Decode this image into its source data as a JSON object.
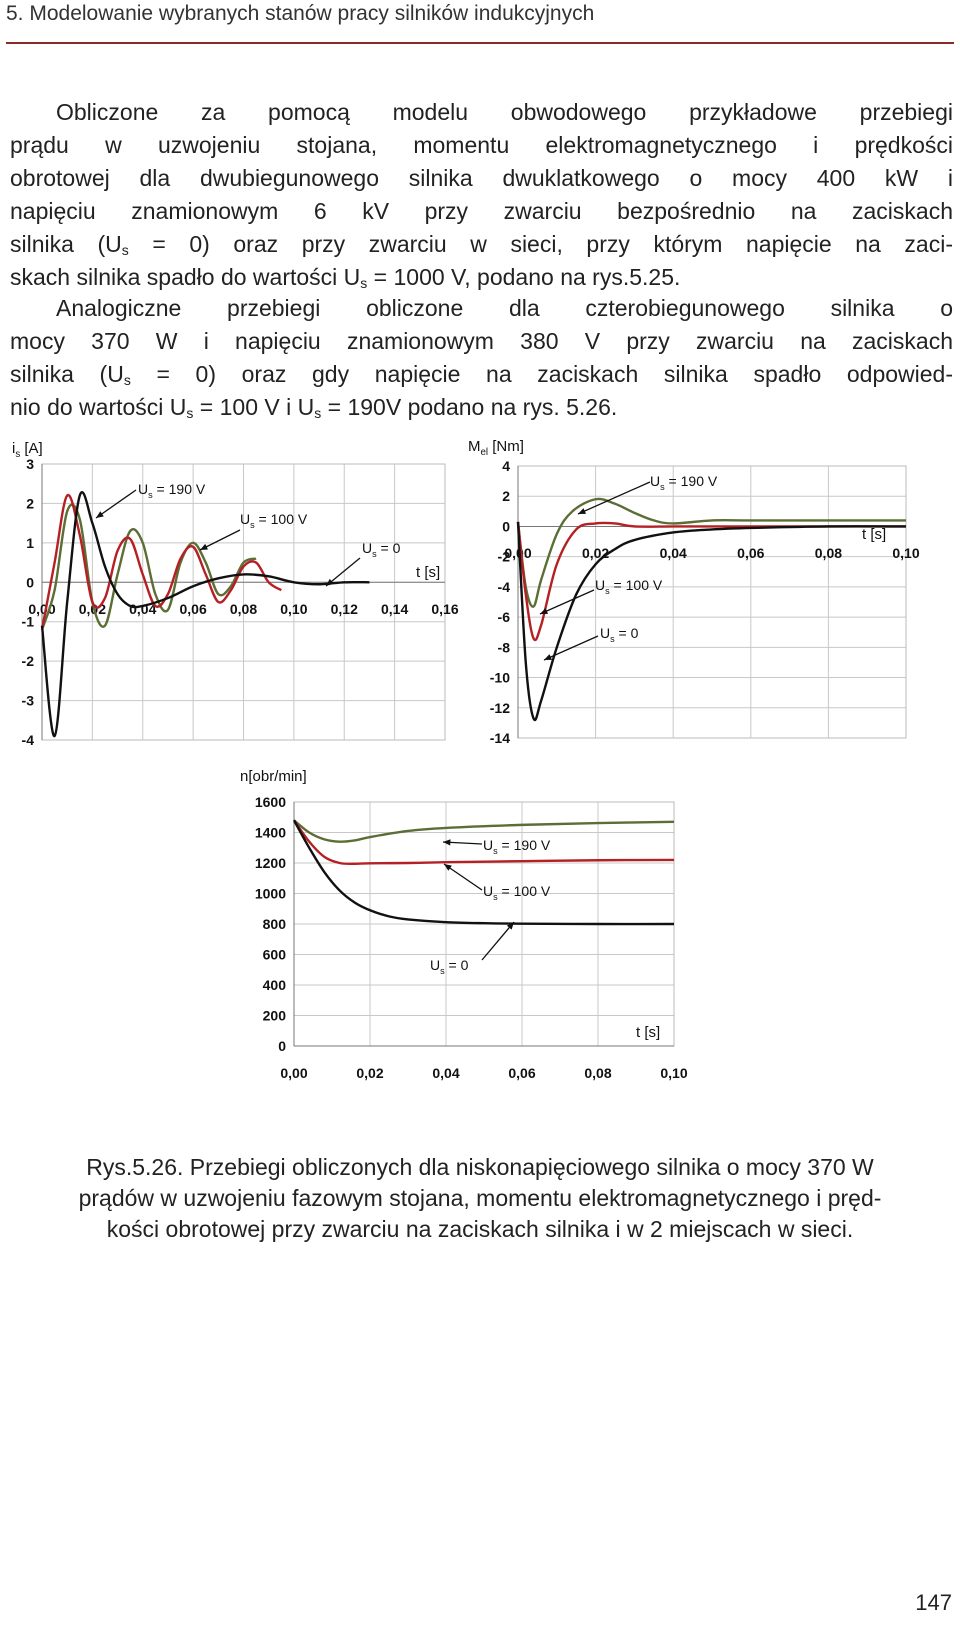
{
  "header": {
    "chapter_title": "5. Modelowanie wybranych stanów pracy silników indukcyjnych"
  },
  "paragraph1": {
    "lines": [
      [
        "Obliczone za pomocą modelu obwodowego przykładowe przebiegi"
      ],
      [
        "prądu w uzwojeniu stojana, momentu elektromagnetycznego i prędkości"
      ],
      [
        "obrotowej dla dwubiegunowego silnika dwuklatkowego o mocy 400 kW i"
      ],
      [
        "napięciu znamionowym 6 kV przy zwarciu bezpośrednio na zaciskach"
      ],
      [
        "silnika (U",
        "s",
        " = 0) oraz przy zwarciu w sieci, przy którym napięcie na zaci-"
      ],
      [
        "skach silnika spadło do wartości U",
        "s",
        " = 1000 V, podano na rys.5.25."
      ]
    ]
  },
  "paragraph2": {
    "lines": [
      [
        "Analogiczne przebiegi obliczone dla czterobiegunowego silnika o"
      ],
      [
        "mocy 370 W i napięciu znamionowym 380 V przy zwarciu na zaciskach"
      ],
      [
        "silnika (U",
        "s",
        " = 0) oraz gdy napięcie na zaciskach silnika spadło odpowied-"
      ],
      [
        "nio do wartości U",
        "s",
        " = 100 V i U",
        "s",
        " = 190V podano na rys. 5.26."
      ]
    ]
  },
  "colors": {
    "us190": "#5a6e35",
    "us100": "#b52025",
    "us0": "#111111",
    "grid": "#c8c8c8",
    "rule": "#8a2a2a"
  },
  "chart_data": [
    {
      "type": "line",
      "name": "current",
      "ylabel": "i_s [A]",
      "xlabel": "t [s]",
      "xlim": [
        0,
        0.16
      ],
      "ylim": [
        -4,
        3
      ],
      "xticks": [
        "0,00",
        "0,02",
        "0,04",
        "0,06",
        "0,08",
        "0,10",
        "0,12",
        "0,14",
        "0,16"
      ],
      "yticks": [
        "3",
        "2",
        "1",
        "0",
        "-1",
        "-2",
        "-3",
        "-4"
      ],
      "annotations": [
        "U_s = 190 V",
        "U_s = 100 V",
        "U_s = 0"
      ],
      "series": [
        {
          "label": "U_s = 190 V",
          "color": "#5a6e35",
          "x": [
            0,
            0.005,
            0.01,
            0.015,
            0.02,
            0.025,
            0.03,
            0.035,
            0.04,
            0.045,
            0.05,
            0.055,
            0.06,
            0.065,
            0.07,
            0.075,
            0.08,
            0.085
          ],
          "y": [
            -1.2,
            -0.2,
            1.8,
            1.6,
            -0.5,
            -1.1,
            0.2,
            1.3,
            1.0,
            -0.3,
            -0.7,
            0.5,
            1.0,
            0.5,
            -0.3,
            -0.1,
            0.5,
            0.6
          ]
        },
        {
          "label": "U_s = 100 V",
          "color": "#b52025",
          "x": [
            0,
            0.005,
            0.01,
            0.015,
            0.02,
            0.025,
            0.03,
            0.035,
            0.04,
            0.045,
            0.05,
            0.055,
            0.06,
            0.065,
            0.07,
            0.075,
            0.08,
            0.085,
            0.09,
            0.095
          ],
          "y": [
            -1.2,
            0.5,
            2.2,
            1.2,
            -0.5,
            -0.4,
            0.8,
            1.1,
            0.2,
            -0.6,
            -0.3,
            0.6,
            0.9,
            0.2,
            -0.5,
            -0.2,
            0.4,
            0.5,
            0.0,
            -0.2
          ]
        },
        {
          "label": "U_s = 0",
          "color": "#111111",
          "x": [
            0,
            0.005,
            0.01,
            0.015,
            0.02,
            0.025,
            0.03,
            0.035,
            0.04,
            0.05,
            0.06,
            0.07,
            0.08,
            0.09,
            0.1,
            0.11,
            0.12,
            0.13
          ],
          "y": [
            -1.1,
            -3.9,
            -0.5,
            2.2,
            1.5,
            0.4,
            -0.3,
            -0.6,
            -0.6,
            -0.4,
            -0.1,
            0.1,
            0.2,
            0.15,
            0.0,
            -0.05,
            0.0,
            0.0
          ]
        }
      ]
    },
    {
      "type": "line",
      "name": "torque",
      "ylabel": "M_el [Nm]",
      "xlabel": "t [s]",
      "xlim": [
        0,
        0.1
      ],
      "ylim": [
        -14,
        4
      ],
      "xticks": [
        "0,00",
        "0,02",
        "0,04",
        "0,06",
        "0,08",
        "0,10"
      ],
      "yticks": [
        "4",
        "2",
        "0",
        "-2",
        "-4",
        "-6",
        "-8",
        "-10",
        "-12",
        "-14"
      ],
      "annotations": [
        "U_s = 190 V",
        "U_s = 100 V",
        "U_s = 0"
      ],
      "series": [
        {
          "label": "U_s = 190 V",
          "color": "#5a6e35",
          "x": [
            0,
            0.002,
            0.004,
            0.006,
            0.01,
            0.014,
            0.02,
            0.025,
            0.03,
            0.035,
            0.04,
            0.05,
            0.06,
            0.08,
            0.1
          ],
          "y": [
            0.3,
            -4.0,
            -5.3,
            -3.5,
            -0.5,
            1.0,
            1.8,
            1.5,
            0.9,
            0.4,
            0.2,
            0.4,
            0.4,
            0.4,
            0.4
          ]
        },
        {
          "label": "U_s = 100 V",
          "color": "#b52025",
          "x": [
            0,
            0.002,
            0.004,
            0.006,
            0.01,
            0.015,
            0.02,
            0.025,
            0.03,
            0.04,
            0.05,
            0.07,
            0.1
          ],
          "y": [
            0.3,
            -4.5,
            -7.4,
            -6.5,
            -2.5,
            -0.2,
            0.2,
            0.2,
            0.0,
            0.0,
            0.0,
            0.0,
            0.0
          ]
        },
        {
          "label": "U_s = 0",
          "color": "#111111",
          "x": [
            0,
            0.002,
            0.004,
            0.006,
            0.01,
            0.015,
            0.02,
            0.025,
            0.03,
            0.04,
            0.05,
            0.06,
            0.08,
            0.1
          ],
          "y": [
            0.3,
            -9.0,
            -12.7,
            -11.5,
            -8.0,
            -4.5,
            -2.5,
            -1.5,
            -0.9,
            -0.4,
            -0.2,
            -0.1,
            0.0,
            0.0
          ]
        }
      ]
    },
    {
      "type": "line",
      "name": "speed",
      "ylabel": "n[obr/min]",
      "xlabel": "t [s]",
      "xlim": [
        0,
        0.1
      ],
      "ylim": [
        0,
        1600
      ],
      "xticks": [
        "0,00",
        "0,02",
        "0,04",
        "0,06",
        "0,08",
        "0,10"
      ],
      "yticks": [
        "1600",
        "1400",
        "1200",
        "1000",
        "800",
        "600",
        "400",
        "200",
        "0"
      ],
      "annotations": [
        "U_s = 190 V",
        "U_s = 100 V",
        "U_s = 0"
      ],
      "series": [
        {
          "label": "U_s = 190 V",
          "color": "#5a6e35",
          "x": [
            0,
            0.004,
            0.008,
            0.012,
            0.016,
            0.02,
            0.03,
            0.04,
            0.06,
            0.08,
            0.1
          ],
          "y": [
            1480,
            1400,
            1355,
            1340,
            1348,
            1370,
            1410,
            1430,
            1450,
            1462,
            1470
          ]
        },
        {
          "label": "U_s = 100 V",
          "color": "#b52025",
          "x": [
            0,
            0.004,
            0.008,
            0.012,
            0.016,
            0.02,
            0.03,
            0.04,
            0.06,
            0.08,
            0.1
          ],
          "y": [
            1480,
            1340,
            1240,
            1200,
            1195,
            1198,
            1200,
            1205,
            1212,
            1218,
            1220
          ]
        },
        {
          "label": "U_s = 0",
          "color": "#111111",
          "x": [
            0,
            0.004,
            0.008,
            0.012,
            0.016,
            0.02,
            0.025,
            0.03,
            0.04,
            0.05,
            0.06,
            0.08,
            0.1
          ],
          "y": [
            1480,
            1300,
            1140,
            1020,
            940,
            890,
            850,
            830,
            812,
            805,
            802,
            800,
            800
          ]
        }
      ]
    }
  ],
  "caption": {
    "lines": [
      "Rys.5.26. Przebiegi obliczonych dla niskonapięciowego silnika o mocy 370 W",
      "prądów w uzwojeniu fazowym stojana, momentu elektromagnetycznego i pręd-",
      "kości obrotowej przy zwarciu na zaciskach silnika i w 2 miejscach w sieci."
    ]
  },
  "page_number": "147"
}
